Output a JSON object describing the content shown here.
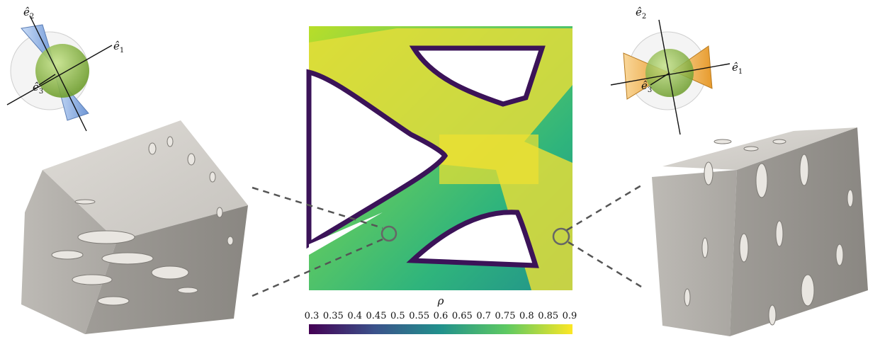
{
  "colorbar": {
    "symbol": "ρ",
    "ticks": [
      "0.3",
      "0.35",
      "0.4",
      "0.45",
      "0.5",
      "0.55",
      "0.6",
      "0.65",
      "0.7",
      "0.75",
      "0.8",
      "0.85",
      "0.9"
    ],
    "stops": [
      "#440154",
      "#3b528b",
      "#21918c",
      "#5ec962",
      "#fde725"
    ]
  },
  "left_glyph": {
    "axes": [
      {
        "hat": "ê",
        "sub": "2"
      },
      {
        "hat": "ê",
        "sub": "1"
      },
      {
        "hat": "ê",
        "sub": "3"
      }
    ]
  },
  "right_glyph": {
    "axes": [
      {
        "hat": "ê",
        "sub": "2"
      },
      {
        "hat": "ê",
        "sub": "1"
      },
      {
        "hat": "ê",
        "sub": "3"
      }
    ]
  },
  "colors": {
    "cube": "#c9c6c1",
    "cube_dark": "#8e8b86",
    "leader": "#555555",
    "cone_left": "#8fb3e8",
    "cone_right": "#f2b653",
    "sphere": "#8dc24d"
  }
}
